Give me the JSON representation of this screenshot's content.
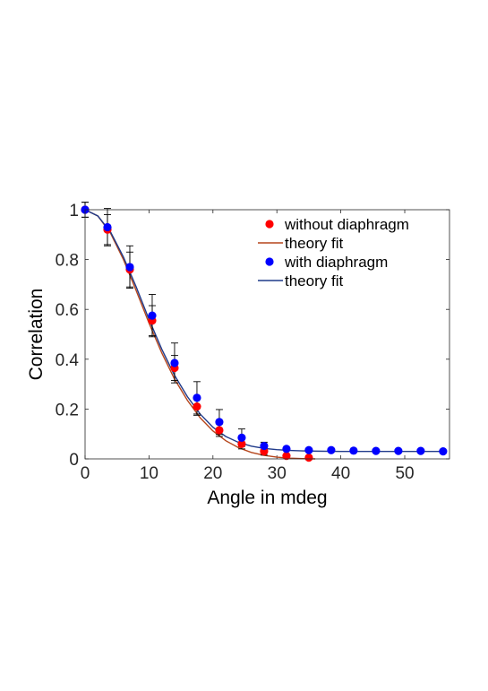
{
  "chart_data": {
    "type": "scatter",
    "title": "",
    "xlabel": "Angle in mdeg",
    "ylabel": "Correlation",
    "xlim": [
      0,
      57
    ],
    "ylim": [
      0,
      1
    ],
    "xticks": [
      0,
      10,
      20,
      30,
      40,
      50
    ],
    "yticks": [
      0,
      0.2,
      0.4,
      0.6,
      0.8,
      1
    ],
    "ytick_labels": [
      "0",
      "0.2",
      "0.4",
      "0.6",
      "0.8",
      "1"
    ],
    "grid": false,
    "legend_position": "top-right",
    "series": [
      {
        "name": "without diaphragm",
        "kind": "points",
        "color": "#ff0000",
        "x": [
          0,
          3.5,
          7.0,
          10.5,
          14.0,
          17.5,
          21.0,
          24.5,
          28.0,
          31.5,
          35.0
        ],
        "y": [
          1.0,
          0.92,
          0.76,
          0.555,
          0.365,
          0.21,
          0.115,
          0.06,
          0.03,
          0.012,
          0.005
        ],
        "err": [
          0.03,
          0.06,
          0.07,
          0.06,
          0.05,
          0.035,
          0.025,
          0.02,
          0.015,
          0,
          0
        ]
      },
      {
        "name": "theory fit",
        "kind": "line",
        "color": "#b5451b",
        "x": [
          0,
          2,
          4,
          6,
          8,
          10,
          12,
          14,
          16,
          18,
          20,
          22,
          24,
          26,
          28,
          30,
          32,
          34,
          36
        ],
        "y": [
          1.0,
          0.975,
          0.905,
          0.8,
          0.675,
          0.545,
          0.425,
          0.32,
          0.235,
          0.165,
          0.112,
          0.073,
          0.045,
          0.026,
          0.014,
          0.007,
          0.003,
          0.001,
          0
        ]
      },
      {
        "name": "with diaphragm",
        "kind": "points",
        "color": "#0000ff",
        "x": [
          0,
          3.5,
          7.0,
          10.5,
          14.0,
          17.5,
          21.0,
          24.5,
          28.0,
          31.5,
          35.0,
          38.5,
          42.0,
          45.5,
          49.0,
          52.5,
          56.0
        ],
        "y": [
          1.0,
          0.93,
          0.77,
          0.575,
          0.385,
          0.245,
          0.148,
          0.085,
          0.052,
          0.04,
          0.035,
          0.035,
          0.033,
          0.032,
          0.032,
          0.032,
          0.03
        ],
        "err": [
          0.03,
          0.075,
          0.085,
          0.085,
          0.08,
          0.065,
          0.05,
          0.035,
          0.015,
          0,
          0,
          0,
          0,
          0,
          0,
          0,
          0
        ]
      },
      {
        "name": "theory fit",
        "kind": "line",
        "color": "#1f3a8a",
        "x": [
          0,
          2,
          4,
          6,
          8,
          10,
          12,
          14,
          16,
          18,
          20,
          22,
          24,
          26,
          28,
          30,
          32,
          34,
          36,
          40,
          45,
          50,
          56
        ],
        "y": [
          1.0,
          0.975,
          0.91,
          0.81,
          0.69,
          0.56,
          0.44,
          0.335,
          0.25,
          0.18,
          0.127,
          0.09,
          0.066,
          0.051,
          0.042,
          0.037,
          0.034,
          0.032,
          0.031,
          0.03,
          0.03,
          0.03,
          0.03
        ]
      }
    ]
  }
}
